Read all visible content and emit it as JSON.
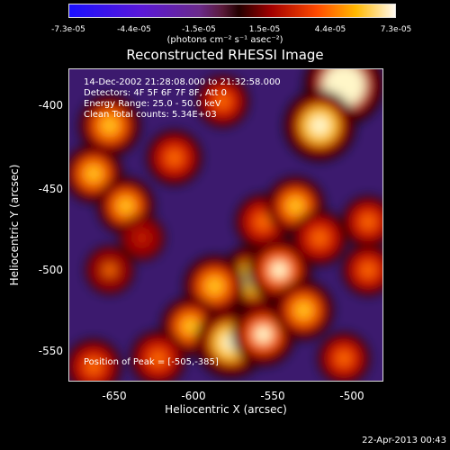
{
  "colorbar": {
    "ticks": [
      "-7.3e-05",
      "-4.4e-05",
      "-1.5e-05",
      "1.5e-05",
      "4.4e-05",
      "7.3e-05"
    ],
    "units": "(photons cm⁻² s⁻¹ asec⁻²)"
  },
  "chart_data": {
    "type": "heatmap",
    "title": "Reconstructed RHESSI Image",
    "xlabel": "Heliocentric X (arcsec)",
    "ylabel": "Heliocentric Y (arcsec)",
    "xlim": [
      -675,
      -480
    ],
    "ylim": [
      -570,
      -375
    ],
    "xticks": [
      "-650",
      "-600",
      "-550",
      "-500"
    ],
    "yticks": [
      "-400",
      "-450",
      "-500",
      "-550"
    ],
    "value_range": [
      -7.3e-05,
      7.3e-05
    ],
    "annotations": [
      "14-Dec-2002 21:28:08.000 to 21:32:58.000",
      "Detectors: 4F 5F 6F 7F 8F, Att 0",
      "Energy Range: 25.0 - 50.0 keV",
      "Clean     Total counts: 5.34E+03"
    ],
    "peak_label": "Position of Peak = [-505,-385]",
    "hotspots": [
      {
        "x": -505,
        "y": -385,
        "value": 7.3e-05
      },
      {
        "x": -520,
        "y": -410,
        "value": 6e-05
      },
      {
        "x": -650,
        "y": -410,
        "value": 4.5e-05
      },
      {
        "x": -660,
        "y": -440,
        "value": 4e-05
      },
      {
        "x": -640,
        "y": -460,
        "value": 3.8e-05
      },
      {
        "x": -610,
        "y": -430,
        "value": 3.5e-05
      },
      {
        "x": -580,
        "y": -395,
        "value": 3e-05
      },
      {
        "x": -555,
        "y": -470,
        "value": 3.6e-05
      },
      {
        "x": -535,
        "y": -460,
        "value": 4e-05
      },
      {
        "x": -560,
        "y": -505,
        "value": 5.5e-05
      },
      {
        "x": -545,
        "y": -500,
        "value": 5e-05
      },
      {
        "x": -585,
        "y": -510,
        "value": 4.5e-05
      },
      {
        "x": -600,
        "y": -535,
        "value": 4e-05
      },
      {
        "x": -575,
        "y": -545,
        "value": 6e-05
      },
      {
        "x": -555,
        "y": -540,
        "value": 4.8e-05
      },
      {
        "x": -530,
        "y": -525,
        "value": 4.2e-05
      },
      {
        "x": -520,
        "y": -480,
        "value": 3.5e-05
      },
      {
        "x": -490,
        "y": -470,
        "value": 3e-05
      },
      {
        "x": -490,
        "y": -500,
        "value": 3e-05
      },
      {
        "x": -620,
        "y": -555,
        "value": 3.5e-05
      },
      {
        "x": -660,
        "y": -560,
        "value": 3.5e-05
      },
      {
        "x": -650,
        "y": -500,
        "value": 2.5e-05
      },
      {
        "x": -505,
        "y": -555,
        "value": 3e-05
      },
      {
        "x": -630,
        "y": -480,
        "value": 2e-05
      }
    ]
  },
  "footer": "22-Apr-2013 00:43"
}
